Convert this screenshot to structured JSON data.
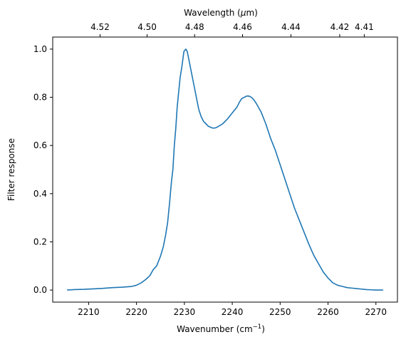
{
  "chart_data": {
    "type": "line",
    "xlabel": "Wavenumber (cm",
    "xlabel_sup": "−1",
    "xlabel_tail": ")",
    "ylabel": "Filter response",
    "top_xlabel": "Wavelength (",
    "top_xlabel_mu": "μ",
    "top_xlabel_tail": "m)",
    "xlim": [
      2202.5,
      2274.5
    ],
    "ylim": [
      -0.05,
      1.05
    ],
    "x_ticks": [
      2210,
      2220,
      2230,
      2240,
      2250,
      2260,
      2270
    ],
    "y_ticks": [
      0.0,
      0.2,
      0.4,
      0.6,
      0.8,
      1.0
    ],
    "y_tick_labels": [
      "0.0",
      "0.2",
      "0.4",
      "0.6",
      "0.8",
      "1.0"
    ],
    "top_ticks": [
      {
        "label": "4.52",
        "wavenumber": 2212.39
      },
      {
        "label": "4.50",
        "wavenumber": 2222.22
      },
      {
        "label": "4.48",
        "wavenumber": 2232.14
      },
      {
        "label": "4.46",
        "wavenumber": 2242.15
      },
      {
        "label": "4.44",
        "wavenumber": 2252.25
      },
      {
        "label": "4.42",
        "wavenumber": 2262.44
      },
      {
        "label": "4.41",
        "wavenumber": 2267.57
      }
    ],
    "line_color": "#1f77b4",
    "grid": false,
    "series": [
      {
        "x": [
          2205.5,
          2207,
          2209,
          2211,
          2213,
          2215,
          2217,
          2219,
          2220,
          2221,
          2222,
          2222.8,
          2223.5,
          2224.2,
          2225,
          2225.6,
          2226.1,
          2226.5,
          2226.9,
          2227.3,
          2227.6,
          2227.9,
          2228.2,
          2228.5,
          2228.8,
          2229.1,
          2229.5,
          2229.9,
          2230.3,
          2230.6,
          2230.9,
          2231.2,
          2231.5,
          2232,
          2232.5,
          2233,
          2233.5,
          2234,
          2234.5,
          2235,
          2235.5,
          2236,
          2236.5,
          2237,
          2238,
          2239,
          2240,
          2241,
          2241.5,
          2242,
          2242.5,
          2243,
          2243.5,
          2244,
          2244.5,
          2245,
          2246,
          2247,
          2247.5,
          2248,
          2249,
          2250,
          2251,
          2252,
          2253,
          2254,
          2255,
          2256,
          2257,
          2258,
          2259,
          2260,
          2261,
          2262,
          2263,
          2264,
          2265,
          2266,
          2267,
          2268,
          2269,
          2270,
          2271.5
        ],
        "y": [
          0.0,
          0.002,
          0.003,
          0.005,
          0.007,
          0.01,
          0.012,
          0.015,
          0.02,
          0.03,
          0.045,
          0.06,
          0.085,
          0.1,
          0.14,
          0.18,
          0.23,
          0.28,
          0.36,
          0.45,
          0.5,
          0.6,
          0.67,
          0.76,
          0.82,
          0.88,
          0.93,
          0.99,
          1.0,
          0.99,
          0.96,
          0.93,
          0.9,
          0.85,
          0.8,
          0.75,
          0.72,
          0.7,
          0.69,
          0.68,
          0.675,
          0.672,
          0.673,
          0.678,
          0.69,
          0.71,
          0.735,
          0.76,
          0.78,
          0.795,
          0.8,
          0.805,
          0.805,
          0.8,
          0.79,
          0.775,
          0.74,
          0.69,
          0.66,
          0.63,
          0.58,
          0.52,
          0.46,
          0.4,
          0.34,
          0.29,
          0.24,
          0.19,
          0.145,
          0.11,
          0.075,
          0.05,
          0.03,
          0.02,
          0.015,
          0.01,
          0.008,
          0.006,
          0.004,
          0.002,
          0.001,
          0.0,
          0.0
        ]
      }
    ]
  }
}
